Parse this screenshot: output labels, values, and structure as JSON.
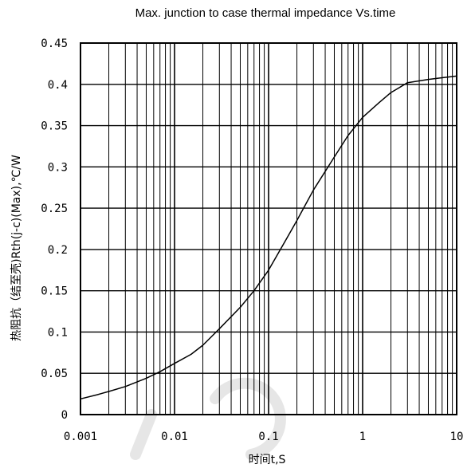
{
  "chart_data": {
    "type": "line",
    "title": "Max. junction to case thermal impedance Vs.time",
    "xlabel": "时间t,S",
    "ylabel": "热阻抗（结至壳)Rth(j-c)(Max),℃/W",
    "x_scale": "log",
    "xlim": [
      0.001,
      10
    ],
    "ylim": [
      0,
      0.45
    ],
    "grid": true,
    "x_ticks": [
      "0.001",
      "0.01",
      "0.1",
      "1",
      "10"
    ],
    "y_ticks": [
      "0",
      "0.05",
      "0.1",
      "0.15",
      "0.2",
      "0.25",
      "0.3",
      "0.35",
      "0.4",
      "0.45"
    ],
    "series": [
      {
        "x": [
          0.001,
          0.0015,
          0.002,
          0.003,
          0.005,
          0.007,
          0.01,
          0.015,
          0.02,
          0.03,
          0.05,
          0.07,
          0.1,
          0.15,
          0.2,
          0.3,
          0.5,
          0.7,
          1,
          1.5,
          2,
          3,
          5,
          7,
          10
        ],
        "values": [
          0.019,
          0.024,
          0.028,
          0.034,
          0.044,
          0.052,
          0.062,
          0.073,
          0.084,
          0.104,
          0.13,
          0.15,
          0.175,
          0.21,
          0.235,
          0.272,
          0.312,
          0.338,
          0.36,
          0.378,
          0.39,
          0.402,
          0.406,
          0.408,
          0.41
        ]
      }
    ]
  }
}
